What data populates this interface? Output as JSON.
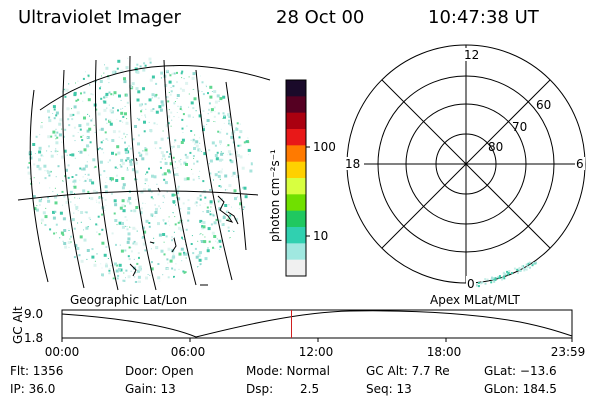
{
  "header": {
    "title": "Ultraviolet Imager",
    "date": "28 Oct 00",
    "time": "10:47:38 UT"
  },
  "geo_map": {
    "label": "Geographic Lat/Lon"
  },
  "colorbar": {
    "unit_label": "photon cm⁻²s⁻¹",
    "ticks": [
      "100",
      "10"
    ],
    "colors": [
      "#1a0a2a",
      "#550022",
      "#aa0010",
      "#e81818",
      "#ff7a00",
      "#ffd000",
      "#d8ff40",
      "#70e000",
      "#20c860",
      "#30d0b0",
      "#a0e8e0",
      "#f0f0f0"
    ]
  },
  "polar_plot": {
    "label": "Apex MLat/MLT",
    "mlt_labels": [
      "12",
      "18",
      "6",
      "0"
    ],
    "mlat_labels": [
      "60",
      "70",
      "80"
    ]
  },
  "gc_alt_plot": {
    "ylabel": "GC Alt",
    "y_ticks": [
      "9.0",
      "1.8"
    ],
    "x_ticks": [
      "00:00",
      "06:00",
      "12:00",
      "18:00",
      "23:59"
    ],
    "marker_time": "10:47:38",
    "marker_color": "#d02020"
  },
  "info": {
    "flt": "Flt: 1356",
    "ip": "IP: 36.0",
    "door": "Door: Open",
    "gain": "Gain: 13",
    "mode": "Mode: Normal",
    "dsp_label": "Dsp:",
    "dsp_value": "2.5",
    "gc_alt": "GC Alt: 7.7 Re",
    "seq": "Seq: 13",
    "glat": "GLat: −13.6",
    "glon": "GLon: 184.5"
  }
}
